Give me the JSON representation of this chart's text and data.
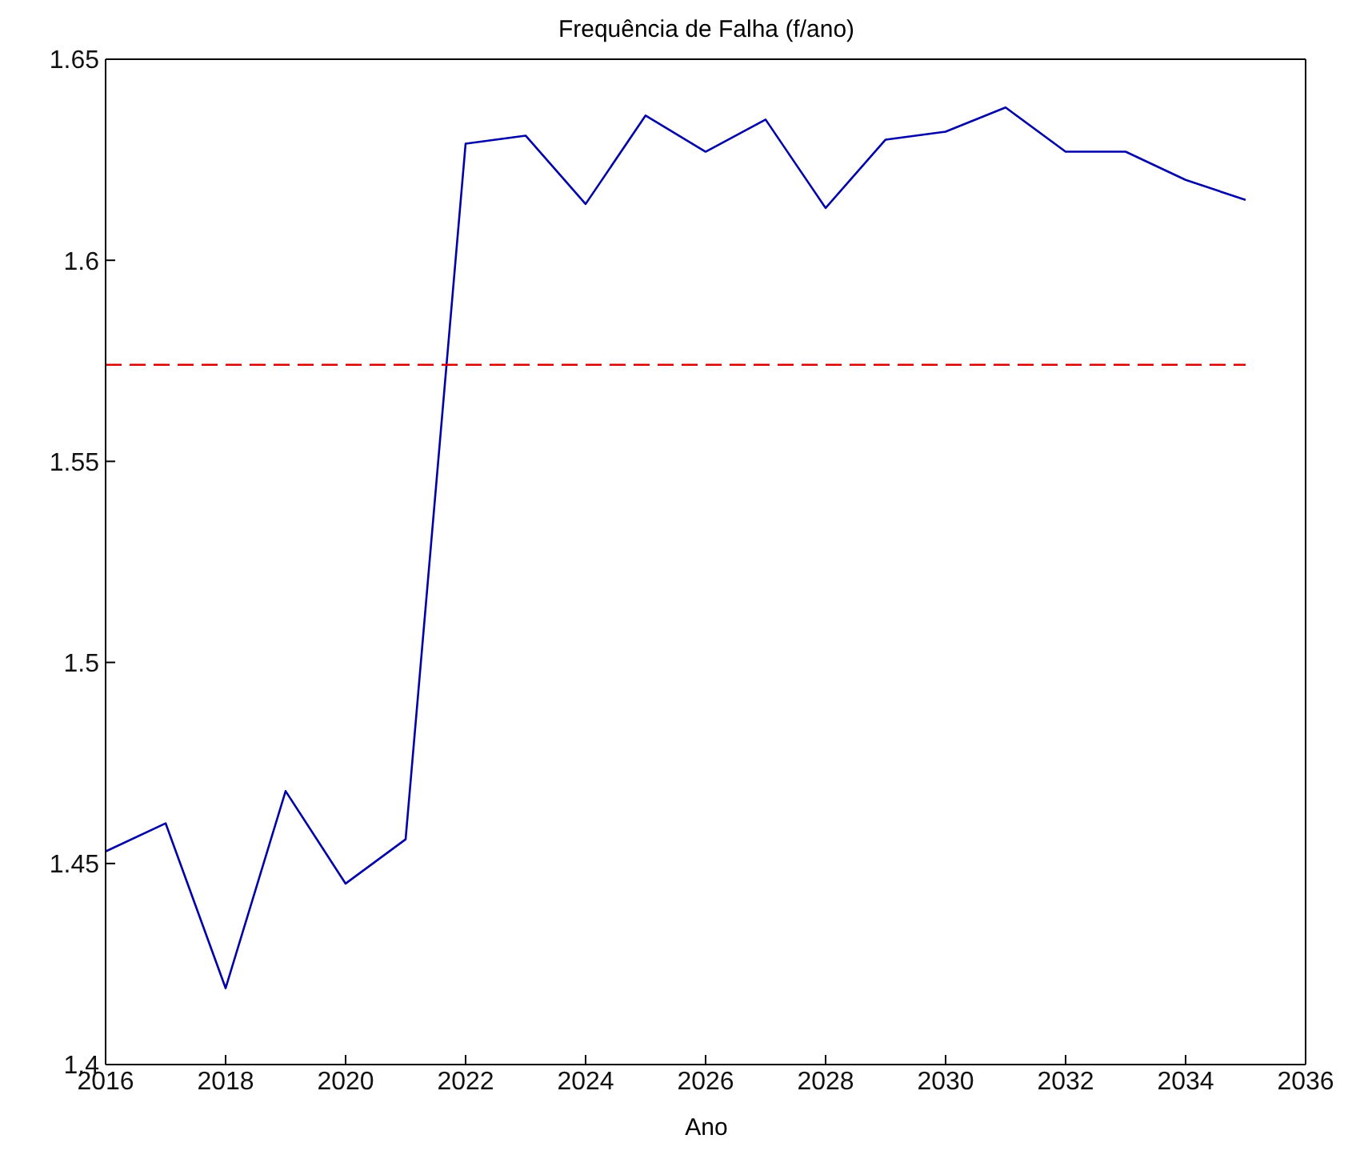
{
  "chart_data": {
    "type": "line",
    "title": "Frequência de Falha (f/ano)",
    "xlabel": "Ano",
    "x": [
      2016,
      2017,
      2018,
      2019,
      2020,
      2021,
      2022,
      2023,
      2024,
      2025,
      2026,
      2027,
      2028,
      2029,
      2030,
      2031,
      2032,
      2033,
      2034,
      2035
    ],
    "series": [
      {
        "color": "#0000aa",
        "values": [
          1.453,
          1.46,
          1.419,
          1.468,
          1.445,
          1.456,
          1.629,
          1.631,
          1.614,
          1.636,
          1.627,
          1.635,
          1.613,
          1.63,
          1.632,
          1.638,
          1.627,
          1.627,
          1.62,
          1.615
        ]
      },
      {
        "color": "#dd0000",
        "line_style": "dashed",
        "x": [
          2016,
          2035
        ],
        "values": [
          1.574,
          1.574
        ]
      }
    ],
    "xlim": [
      2016,
      2036
    ],
    "xticks": [
      2016,
      2018,
      2020,
      2022,
      2024,
      2026,
      2028,
      2030,
      2032,
      2034,
      2036
    ],
    "ylim": [
      1.4,
      1.65
    ],
    "yticks": [
      1.4,
      1.45,
      1.5,
      1.55,
      1.6,
      1.65
    ],
    "marker": "none",
    "line_style": "solid"
  }
}
